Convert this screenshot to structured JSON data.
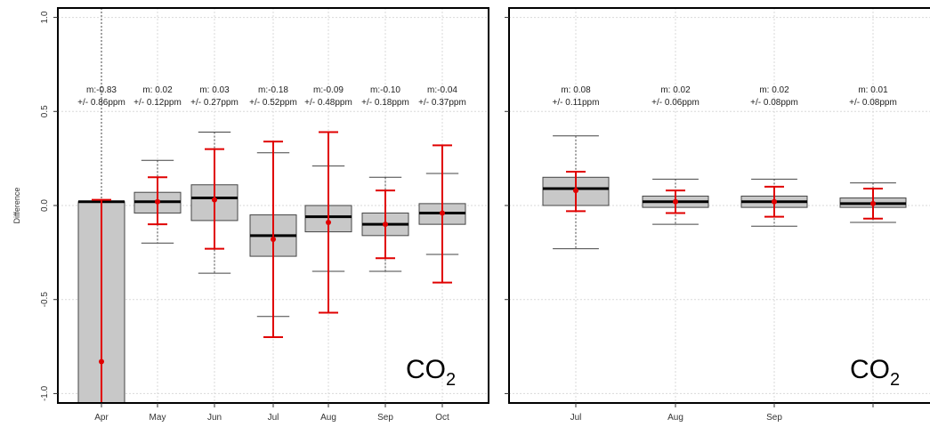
{
  "chart_data": [
    {
      "type": "box",
      "ylabel": "Difference",
      "ylim": [
        -1.05,
        1.05
      ],
      "yticks": [
        {
          "value": 1.0,
          "label": "1.0"
        },
        {
          "value": 0.5,
          "label": "0.5"
        },
        {
          "value": 0.0,
          "label": "0.0"
        },
        {
          "value": -0.5,
          "label": "-0.5"
        },
        {
          "value": -1.0,
          "label": "-1.0"
        }
      ],
      "label_main": "CO",
      "label_sub": "2",
      "categories": [
        "Apr",
        "May",
        "Jun",
        "Jul",
        "Aug",
        "Sep",
        "Oct"
      ],
      "boxes": [
        {
          "q1": -1.1,
          "median": 0.02,
          "q3": 0.02,
          "whisker_low": -1.1,
          "whisker_high": 1.05,
          "mean": -0.83,
          "err_low": -1.1,
          "err_high": 0.03,
          "mean_label": "m:-0.83",
          "err_label": "+/- 0.86ppm"
        },
        {
          "q1": -0.04,
          "median": 0.02,
          "q3": 0.07,
          "whisker_low": -0.2,
          "whisker_high": 0.24,
          "mean": 0.02,
          "err_low": -0.1,
          "err_high": 0.15,
          "mean_label": "m: 0.02",
          "err_label": "+/- 0.12ppm"
        },
        {
          "q1": -0.08,
          "median": 0.04,
          "q3": 0.11,
          "whisker_low": -0.36,
          "whisker_high": 0.39,
          "mean": 0.03,
          "err_low": -0.23,
          "err_high": 0.3,
          "mean_label": "m: 0.03",
          "err_label": "+/- 0.27ppm"
        },
        {
          "q1": -0.27,
          "median": -0.16,
          "q3": -0.05,
          "whisker_low": -0.59,
          "whisker_high": 0.28,
          "mean": -0.18,
          "err_low": -0.7,
          "err_high": 0.34,
          "mean_label": "m:-0.18",
          "err_label": "+/- 0.52ppm"
        },
        {
          "q1": -0.14,
          "median": -0.06,
          "q3": 0.0,
          "whisker_low": -0.35,
          "whisker_high": 0.21,
          "mean": -0.09,
          "err_low": -0.57,
          "err_high": 0.39,
          "mean_label": "m:-0.09",
          "err_label": "+/- 0.48ppm"
        },
        {
          "q1": -0.16,
          "median": -0.1,
          "q3": -0.04,
          "whisker_low": -0.35,
          "whisker_high": 0.15,
          "mean": -0.1,
          "err_low": -0.28,
          "err_high": 0.08,
          "mean_label": "m:-0.10",
          "err_label": "+/- 0.18ppm"
        },
        {
          "q1": -0.1,
          "median": -0.04,
          "q3": 0.01,
          "whisker_low": -0.26,
          "whisker_high": 0.17,
          "mean": -0.04,
          "err_low": -0.41,
          "err_high": 0.32,
          "mean_label": "m:-0.04",
          "err_label": "+/- 0.37ppm"
        }
      ]
    },
    {
      "type": "box",
      "ylim": [
        -1.05,
        1.05
      ],
      "yticks": [
        {
          "value": 1.0,
          "label": ""
        },
        {
          "value": 0.5,
          "label": ""
        },
        {
          "value": 0.0,
          "label": ""
        },
        {
          "value": -0.5,
          "label": ""
        },
        {
          "value": -1.0,
          "label": ""
        }
      ],
      "label_main": "CO",
      "label_sub": "2",
      "categories": [
        "Jul",
        "Aug",
        "Sep",
        ""
      ],
      "boxes": [
        {
          "q1": 0.0,
          "median": 0.09,
          "q3": 0.15,
          "whisker_low": -0.23,
          "whisker_high": 0.37,
          "mean": 0.08,
          "err_low": -0.03,
          "err_high": 0.18,
          "mean_label": "m: 0.08",
          "err_label": "+/- 0.11ppm"
        },
        {
          "q1": -0.01,
          "median": 0.02,
          "q3": 0.05,
          "whisker_low": -0.1,
          "whisker_high": 0.14,
          "mean": 0.02,
          "err_low": -0.04,
          "err_high": 0.08,
          "mean_label": "m: 0.02",
          "err_label": "+/- 0.06ppm"
        },
        {
          "q1": -0.01,
          "median": 0.02,
          "q3": 0.05,
          "whisker_low": -0.11,
          "whisker_high": 0.14,
          "mean": 0.02,
          "err_low": -0.06,
          "err_high": 0.1,
          "mean_label": "m: 0.02",
          "err_label": "+/- 0.08ppm"
        },
        {
          "q1": -0.01,
          "median": 0.01,
          "q3": 0.04,
          "whisker_low": -0.09,
          "whisker_high": 0.12,
          "mean": 0.01,
          "err_low": -0.07,
          "err_high": 0.09,
          "mean_label": "m: 0.01",
          "err_label": "+/- 0.08ppm"
        }
      ]
    }
  ],
  "colors": {
    "box_fill": "#c8c8c8",
    "box_stroke": "#444444",
    "error_bar": "#e00000",
    "grid": "#d9d9d9",
    "whisker": "#444444"
  }
}
